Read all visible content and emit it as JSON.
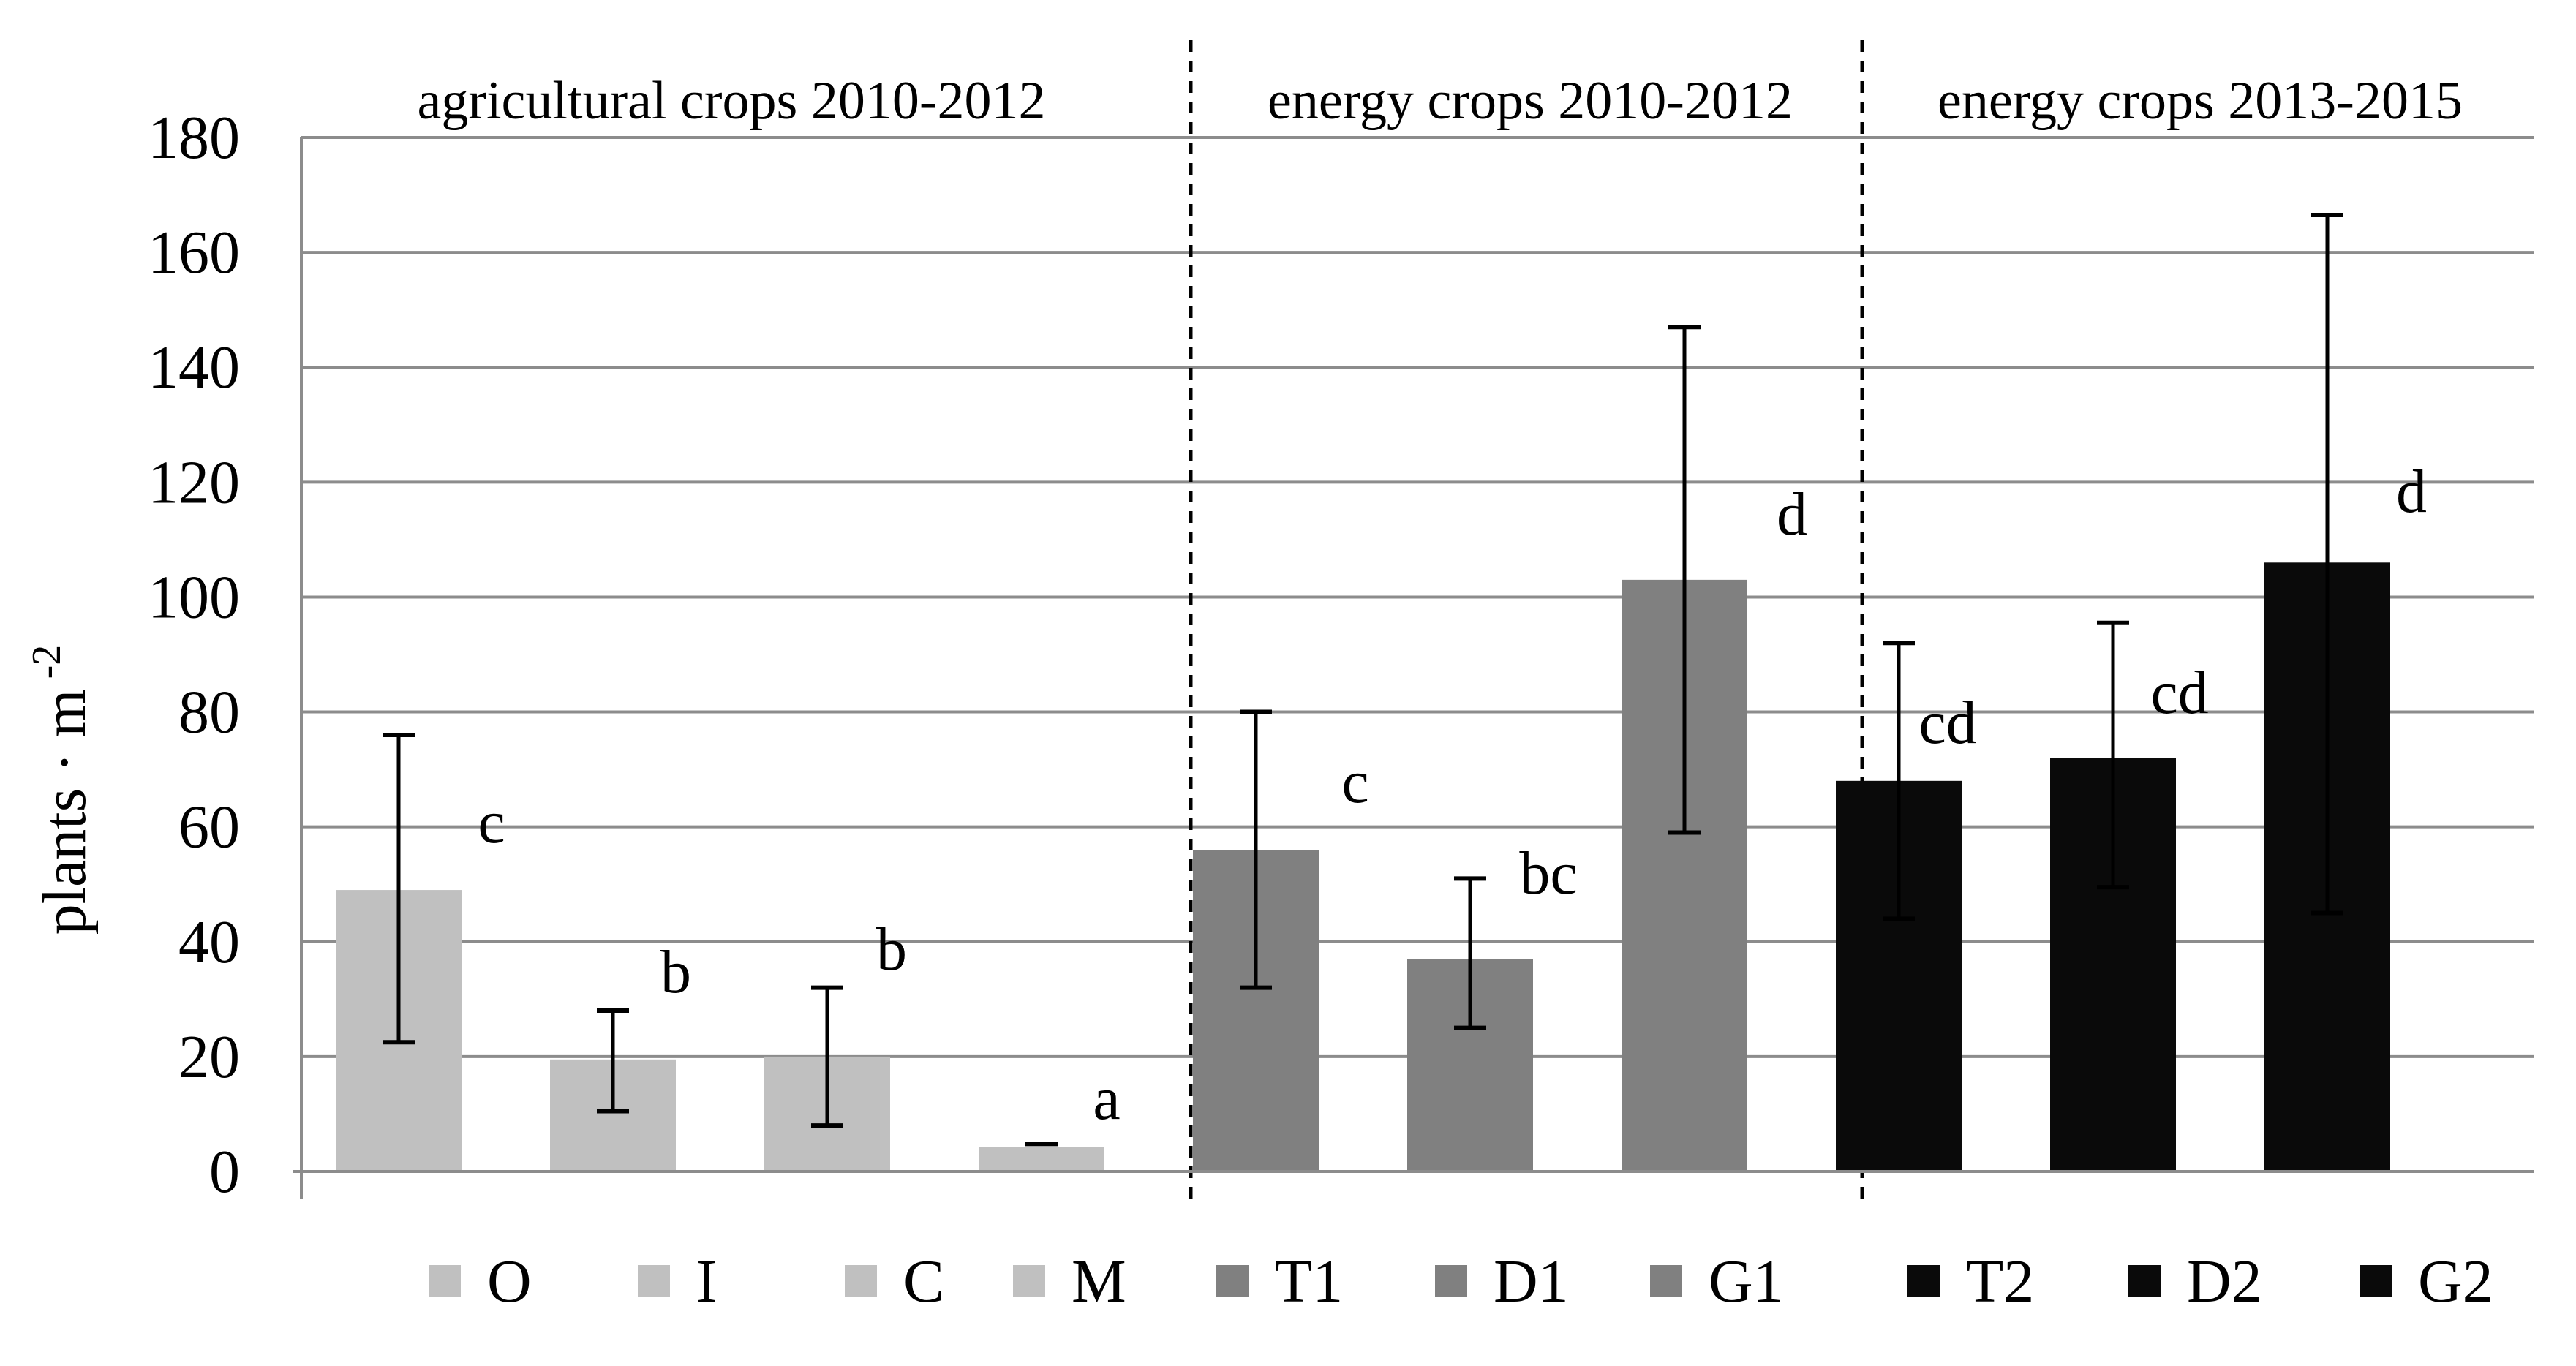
{
  "chart_data": {
    "type": "bar",
    "title": "",
    "xlabel": "",
    "ylabel": "plants · m",
    "ylabel_superscript": "-2",
    "ylim": [
      0,
      180
    ],
    "yticks": [
      0,
      20,
      40,
      60,
      80,
      100,
      120,
      140,
      160,
      180
    ],
    "grid": true,
    "legend_position": "bottom",
    "groups": [
      {
        "label": "agricultural crops 2010-2012",
        "color": "#c0c0c0"
      },
      {
        "label": "energy crops 2010-2012",
        "color": "#808080"
      },
      {
        "label": "energy crops 2013-2015",
        "color": "#0a0a0a"
      }
    ],
    "series": [
      {
        "name": "O",
        "group": 0,
        "value": 49,
        "err_low": 22.5,
        "err_high": 76,
        "letter": "c"
      },
      {
        "name": "I",
        "group": 0,
        "value": 19.5,
        "err_low": 10.5,
        "err_high": 28,
        "letter": "b"
      },
      {
        "name": "C",
        "group": 0,
        "value": 20,
        "err_low": 8,
        "err_high": 32,
        "letter": "b"
      },
      {
        "name": "M",
        "group": 0,
        "value": 4.3,
        "err_low": 4.8,
        "err_high": 4.8,
        "letter": "a"
      },
      {
        "name": "T1",
        "group": 1,
        "value": 56,
        "err_low": 32,
        "err_high": 80,
        "letter": "c"
      },
      {
        "name": "D1",
        "group": 1,
        "value": 37,
        "err_low": 25,
        "err_high": 51,
        "letter": "bc"
      },
      {
        "name": "G1",
        "group": 1,
        "value": 103,
        "err_low": 59,
        "err_high": 147,
        "letter": "d"
      },
      {
        "name": "T2",
        "group": 2,
        "value": 68,
        "err_low": 44,
        "err_high": 92,
        "letter": "cd"
      },
      {
        "name": "D2",
        "group": 2,
        "value": 72,
        "err_low": 49.5,
        "err_high": 95.5,
        "letter": "cd"
      },
      {
        "name": "G2",
        "group": 2,
        "value": 106,
        "err_low": 45,
        "err_high": 166.5,
        "letter": "d"
      }
    ]
  }
}
